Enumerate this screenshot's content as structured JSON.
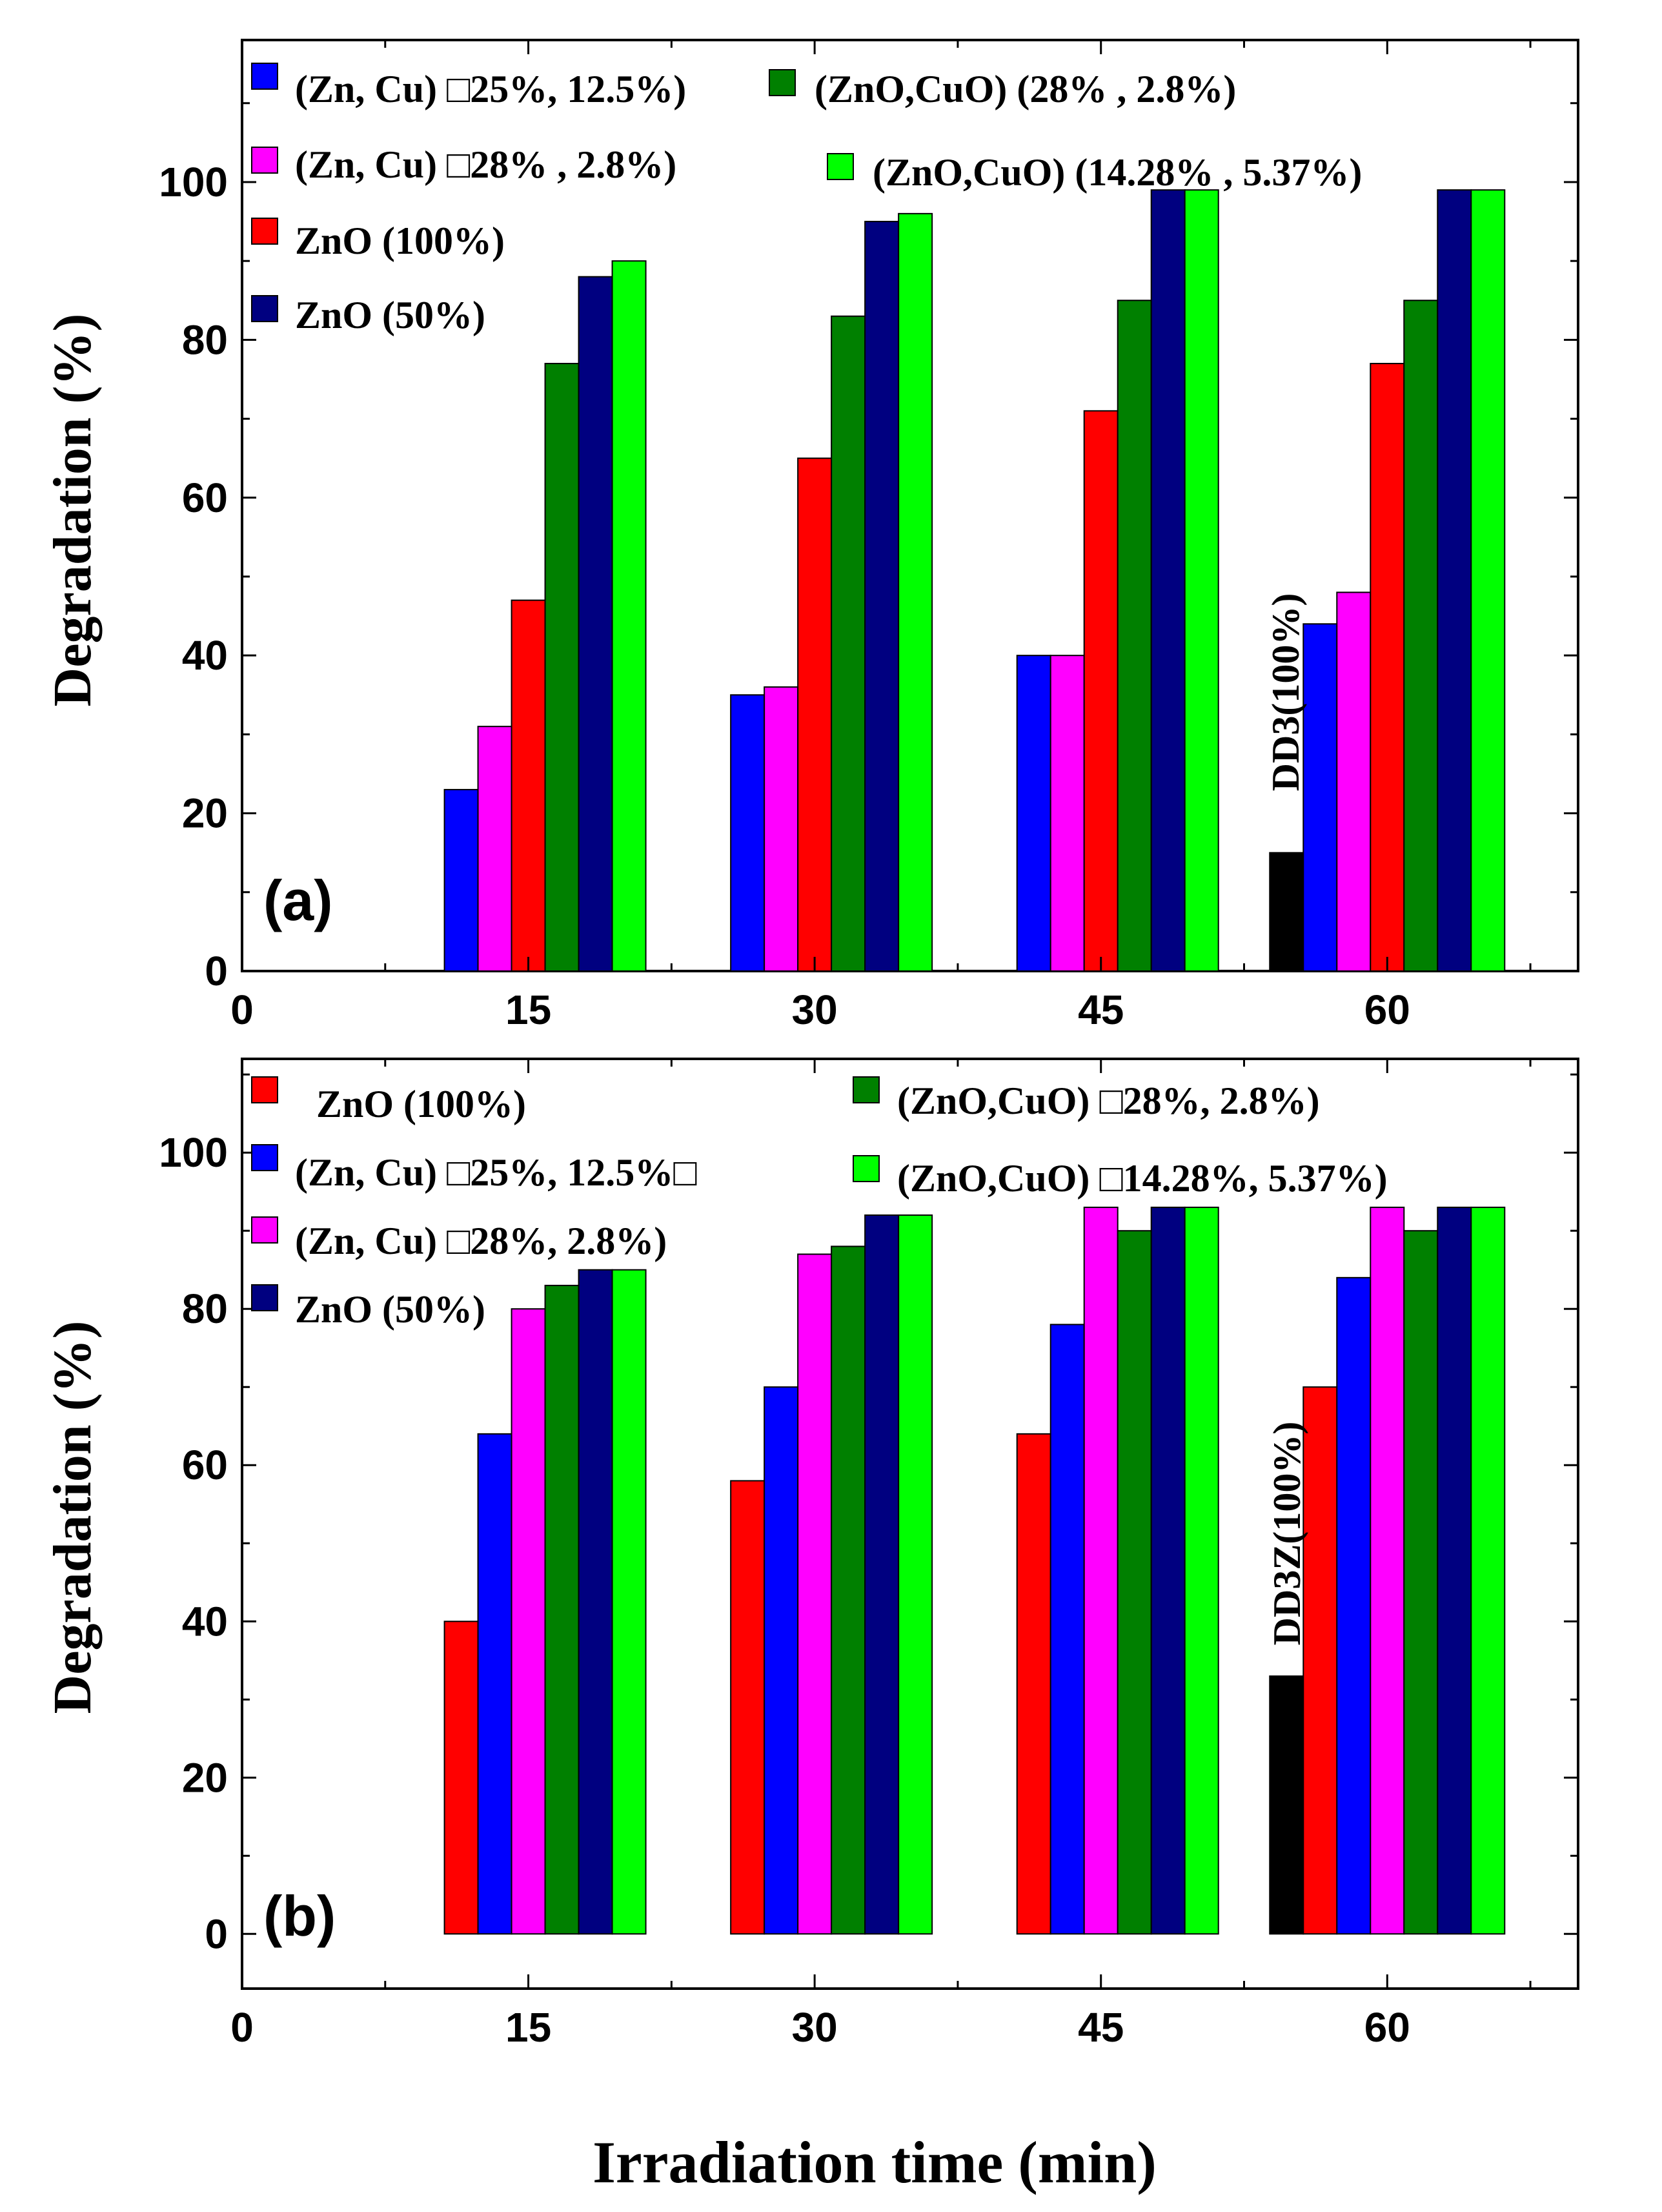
{
  "figure": {
    "xlabel": "Irradiation time (min)"
  },
  "chart_data": [
    {
      "type": "bar",
      "panel_label": "(a)",
      "title": "",
      "xlabel": "Irradiation time (min)",
      "ylabel": "Degradation (%)",
      "xlim": [
        0,
        70
      ],
      "ylim": [
        0,
        118
      ],
      "x_ticks": [
        0,
        15,
        30,
        45,
        60
      ],
      "y_ticks": [
        0,
        20,
        40,
        60,
        80,
        100
      ],
      "categories": [
        "15",
        "30",
        "45",
        "60"
      ],
      "x": [
        15,
        30,
        45,
        60
      ],
      "series": [
        {
          "name": "DD3(100%)",
          "color": "#000000",
          "values": [
            null,
            null,
            null,
            15
          ]
        },
        {
          "name": "(Zn, Cu) □25%, 12.5%)",
          "color": "#0000ff",
          "values": [
            23,
            35,
            40,
            44
          ]
        },
        {
          "name": "(Zn, Cu) □28% , 2.8%)",
          "color": "#ff00ff",
          "values": [
            31,
            36,
            40,
            48
          ]
        },
        {
          "name": "ZnO (100%)",
          "color": "#ff0000",
          "values": [
            47,
            65,
            71,
            77
          ]
        },
        {
          "name": "(ZnO,CuO) (28% , 2.8%)",
          "color": "#008000",
          "values": [
            77,
            83,
            85,
            85
          ]
        },
        {
          "name": "ZnO (50%)",
          "color": "#000080",
          "values": [
            88,
            95,
            99,
            99
          ]
        },
        {
          "name": "(ZnO,CuO) (14.28% , 5.37%)",
          "color": "#00ff00",
          "values": [
            90,
            96,
            99,
            99
          ]
        }
      ],
      "legend": {
        "placement": "top-left",
        "entries": [
          {
            "label": "(Zn, Cu)  □25%, 12.5%)",
            "color": "#0000ff"
          },
          {
            "label": "(ZnO,CuO) (28% , 2.8%)",
            "color": "#008000"
          },
          {
            "label": "(Zn, Cu) □28% , 2.8%)",
            "color": "#ff00ff"
          },
          {
            "label": "(ZnO,CuO) (14.28% , 5.37%)",
            "color": "#00ff00"
          },
          {
            "label": "ZnO (100%)",
            "color": "#ff0000"
          },
          {
            "label": "ZnO (50%)",
            "color": "#000080"
          }
        ]
      },
      "annotation": {
        "text": "DD3(100%)"
      }
    },
    {
      "type": "bar",
      "panel_label": "(b)",
      "title": "",
      "xlabel": "Irradiation time (min)",
      "ylabel": "Degradation (%)",
      "xlim": [
        0,
        70
      ],
      "ylim": [
        -7,
        112
      ],
      "x_ticks": [
        0,
        15,
        30,
        45,
        60
      ],
      "y_ticks": [
        0,
        20,
        40,
        60,
        80,
        100
      ],
      "categories": [
        "15",
        "30",
        "45",
        "60"
      ],
      "x": [
        15,
        30,
        45,
        60
      ],
      "series": [
        {
          "name": "DD3Z(100%)",
          "color": "#000000",
          "values": [
            null,
            null,
            null,
            33
          ]
        },
        {
          "name": "ZnO (100%)",
          "color": "#ff0000",
          "values": [
            40,
            58,
            64,
            70
          ]
        },
        {
          "name": "(Zn, Cu) □25%, 12.5%□",
          "color": "#0000ff",
          "values": [
            64,
            70,
            78,
            84
          ]
        },
        {
          "name": "(Zn, Cu) □28%, 2.8%)",
          "color": "#ff00ff",
          "values": [
            80,
            87,
            93,
            93
          ]
        },
        {
          "name": "(ZnO,CuO) □28%, 2.8%)",
          "color": "#008000",
          "values": [
            83,
            88,
            90,
            90
          ]
        },
        {
          "name": "ZnO (50%)",
          "color": "#000080",
          "values": [
            85,
            92,
            93,
            93
          ]
        },
        {
          "name": "(ZnO,CuO) □14.28%, 5.37%)",
          "color": "#00ff00",
          "values": [
            85,
            92,
            93,
            93
          ]
        }
      ],
      "legend": {
        "placement": "top-left",
        "entries": [
          {
            "label": "ZnO (100%)",
            "color": "#ff0000"
          },
          {
            "label": "(ZnO,CuO) □28%, 2.8%)",
            "color": "#008000"
          },
          {
            "label": "(Zn, Cu)  □25%, 12.5%□",
            "color": "#0000ff"
          },
          {
            "label": "(ZnO,CuO) □14.28%, 5.37%)",
            "color": "#00ff00"
          },
          {
            "label": " (Zn, Cu) □28%, 2.8%)",
            "color": "#ff00ff"
          },
          {
            "label": "ZnO (50%)",
            "color": "#000080"
          }
        ]
      },
      "annotation": {
        "text": "DD3Z(100%)"
      }
    }
  ]
}
